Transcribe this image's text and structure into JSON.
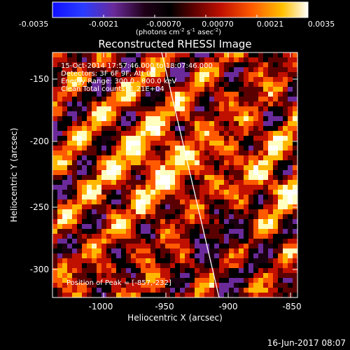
{
  "colorbar": {
    "ticks": [
      "-0.0035",
      "-0.0021",
      "-0.00070",
      "0.00070",
      "0.0021",
      "0.0035"
    ],
    "units_main": "(photons cm",
    "units_exp1": "-2",
    "units_mid1": " s",
    "units_exp2": "-1",
    "units_mid2": " asec",
    "units_exp3": "-2",
    "units_end": ")",
    "colors": [
      "#1010ff",
      "#6a2a9a",
      "#1a0010",
      "#000000",
      "#5a0000",
      "#c01000",
      "#ff5a00",
      "#ffb800",
      "#ffffc0",
      "#ffffff"
    ]
  },
  "image": {
    "title": "Reconstructed RHESSI Image",
    "info_lines": [
      "15-Oct-2014 17:57:46.000 to 18:07:46.000",
      "Detectors: 3F 6F 9F, Att 0",
      "Energy Range: 300.0 - 800.0 keV",
      "Clean      Total counts: 1.21E+04"
    ],
    "peak_text": "Position of Peak = [-857,-232]",
    "x_label": "Heliocentric X (arcsec)",
    "y_label": "Heliocentric Y (arcsec)",
    "x_ticks": [
      "-1000",
      "-950",
      "-900",
      "-850"
    ],
    "y_ticks": [
      "-150",
      "-200",
      "-250",
      "-300"
    ],
    "x_range": [
      -1040,
      -842
    ],
    "y_range": [
      -322,
      -126
    ]
  },
  "footer": {
    "timestamp": "16-Jun-2017 08:07"
  }
}
